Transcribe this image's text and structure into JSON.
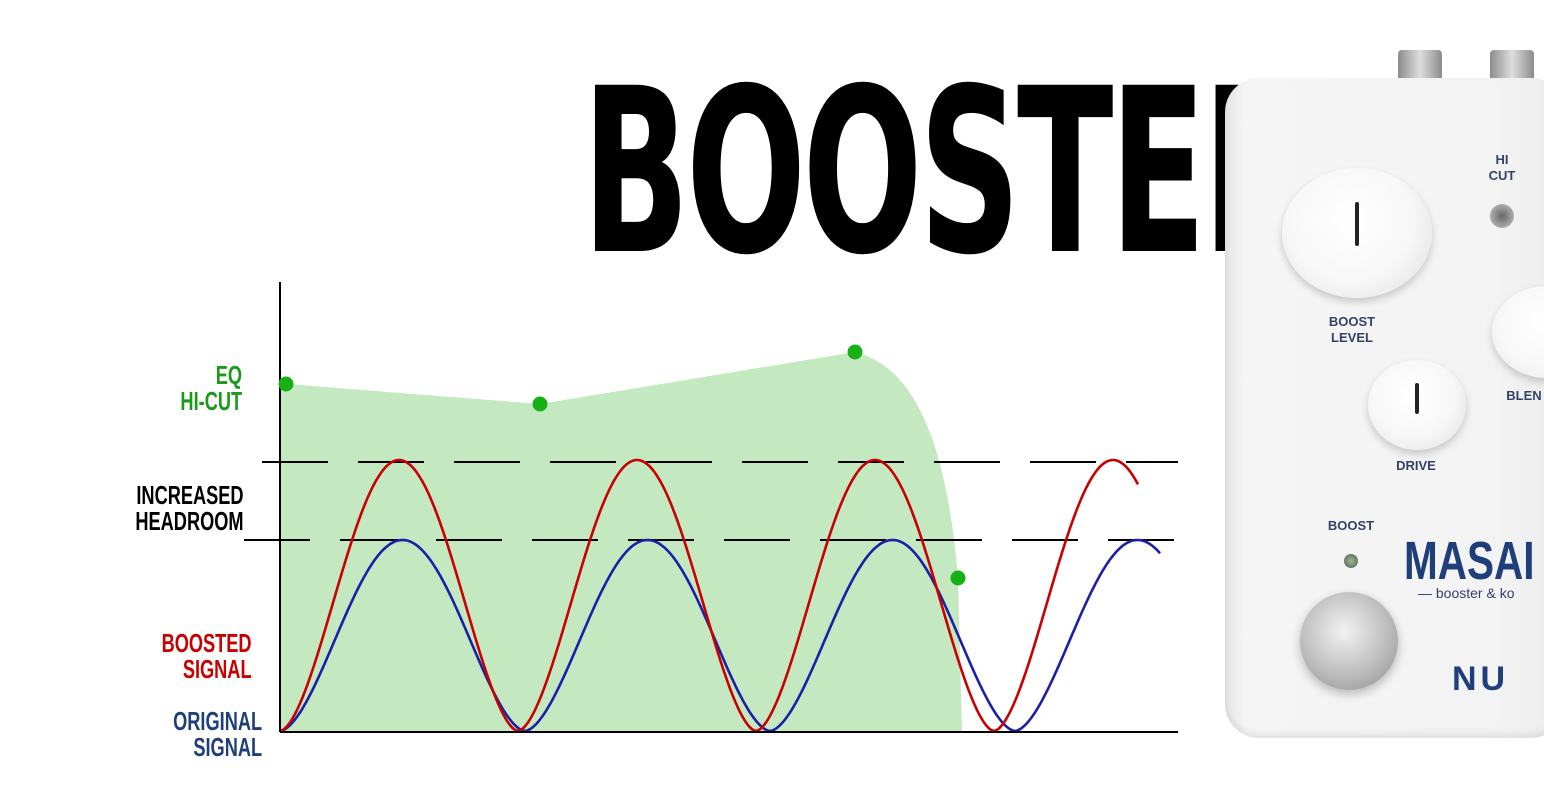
{
  "title": "BOOSTER",
  "labels": {
    "eq": [
      "EQ",
      "HI-CUT"
    ],
    "headroom": [
      "INCREASED",
      "HEADROOM"
    ],
    "boosted": [
      "BOOSTED",
      "SIGNAL"
    ],
    "original": [
      "ORIGINAL",
      "SIGNAL"
    ]
  },
  "colors": {
    "eq": "#1a9a1a",
    "eq_fill": "#c4e8c0",
    "eq_point": "#17b117",
    "boosted": "#c80000",
    "original": "#1c1fa8",
    "original_label": "#1f3f7a",
    "headroom": "#000000",
    "axis": "#000000"
  },
  "diagram": {
    "eq_points": 4,
    "boosted_peaks": 4,
    "original_peaks": 4,
    "headroom_lines": 2
  },
  "pedal": {
    "labels": {
      "hi_cut": [
        "HI",
        "CUT"
      ],
      "boost_level": [
        "BOOST",
        "LEVEL"
      ],
      "blend": "BLEN",
      "drive": "DRIVE",
      "boost": "BOOST"
    },
    "brand": "MASAI",
    "subtitle": "— booster & ko",
    "maker": "NU"
  }
}
